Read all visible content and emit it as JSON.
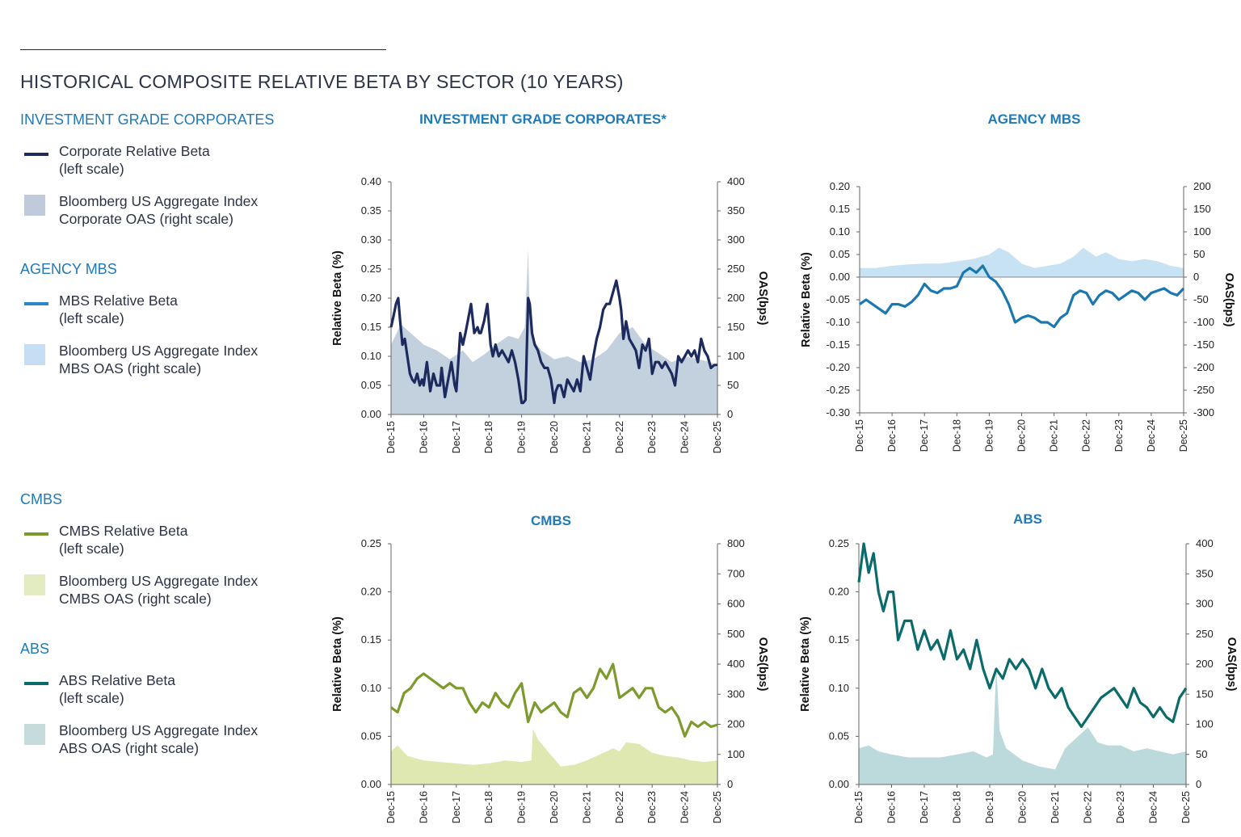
{
  "page": {
    "title": "HISTORICAL COMPOSITE RELATIVE BETA BY SECTOR (10 YEARS)"
  },
  "legend": [
    {
      "heading": "INVESTMENT GRADE CORPORATES",
      "items": [
        {
          "line1": "Corporate Relative Beta",
          "line2": "(left scale)",
          "kind": "line",
          "color": "#1c2a5e"
        },
        {
          "line1": "Bloomberg US Aggregate Index",
          "line2": "Corporate OAS (right scale)",
          "kind": "area",
          "color": "#bfcadb"
        }
      ]
    },
    {
      "heading": "AGENCY MBS",
      "items": [
        {
          "line1": "MBS Relative Beta",
          "line2": "(left scale)",
          "kind": "line",
          "color": "#2a86c8"
        },
        {
          "line1": "Bloomberg US Aggregate Index",
          "line2": "MBS OAS (right scale)",
          "kind": "area",
          "color": "#c6def3"
        }
      ]
    },
    {
      "heading": "CMBS",
      "items": [
        {
          "line1": "CMBS Relative Beta",
          "line2": "(left scale)",
          "kind": "line",
          "color": "#7e9a2d"
        },
        {
          "line1": "Bloomberg US Aggregate Index",
          "line2": "CMBS OAS (right scale)",
          "kind": "area",
          "color": "#e3ebc0"
        }
      ]
    },
    {
      "heading": "ABS",
      "items": [
        {
          "line1": "ABS Relative Beta",
          "line2": "(left scale)",
          "kind": "line",
          "color": "#0b6b6b"
        },
        {
          "line1": "Bloomberg US Aggregate Index",
          "line2": "ABS OAS (right scale)",
          "kind": "area",
          "color": "#c6dcdc"
        }
      ]
    }
  ],
  "chart_data": [
    {
      "type": "line",
      "title": "INVESTMENT GRADE CORPORATES*",
      "ylabel": "Relative Beta (%)",
      "y2label": "OAS(bps)",
      "ylim": [
        0,
        0.4
      ],
      "y2lim": [
        0,
        400
      ],
      "yticks": [
        "0.00",
        "0.05",
        "0.10",
        "0.15",
        "0.20",
        "0.25",
        "0.30",
        "0.35",
        "0.40"
      ],
      "y2ticks": [
        "0",
        "50",
        "100",
        "150",
        "200",
        "250",
        "300",
        "350",
        "400"
      ],
      "categories": [
        "Dec-15",
        "Dec-16",
        "Dec-17",
        "Dec-18",
        "Dec-19",
        "Dec-20",
        "Dec-21",
        "Dec-22",
        "Dec-23",
        "Dec-24",
        "Dec-25"
      ],
      "line_color": "#1c2a5e",
      "area_color": "#c3d0de",
      "beta_x": [
        0,
        0.08,
        0.15,
        0.22,
        0.28,
        0.35,
        0.42,
        0.5,
        0.58,
        0.65,
        0.72,
        0.8,
        0.88,
        0.95,
        1.0,
        1.1,
        1.2,
        1.3,
        1.4,
        1.5,
        1.55,
        1.65,
        1.75,
        1.85,
        1.95,
        2.0,
        2.05,
        2.12,
        2.2,
        2.28,
        2.35,
        2.45,
        2.55,
        2.65,
        2.7,
        2.75,
        2.85,
        2.95,
        3.05,
        3.12,
        3.2,
        3.3,
        3.4,
        3.5,
        3.6,
        3.7,
        3.8,
        3.9,
        4.0,
        4.05,
        4.12,
        4.2,
        4.25,
        4.32,
        4.4,
        4.5,
        4.6,
        4.7,
        4.8,
        4.9,
        5.0,
        5.05,
        5.12,
        5.2,
        5.3,
        5.4,
        5.5,
        5.6,
        5.7,
        5.8,
        5.9,
        6.0,
        6.1,
        6.2,
        6.3,
        6.4,
        6.5,
        6.6,
        6.7,
        6.8,
        6.9,
        7.0,
        7.05,
        7.12,
        7.2,
        7.3,
        7.4,
        7.5,
        7.6,
        7.7,
        7.8,
        7.9,
        8.0,
        8.1,
        8.2,
        8.3,
        8.4,
        8.5,
        8.6,
        8.7,
        8.8,
        8.9,
        9.0,
        9.1,
        9.2,
        9.3,
        9.4,
        9.5,
        9.6,
        9.7,
        9.8,
        9.9,
        10.0
      ],
      "beta_y": [
        0.15,
        0.17,
        0.19,
        0.2,
        0.16,
        0.12,
        0.13,
        0.1,
        0.07,
        0.06,
        0.055,
        0.07,
        0.05,
        0.06,
        0.05,
        0.09,
        0.04,
        0.07,
        0.05,
        0.05,
        0.08,
        0.03,
        0.06,
        0.09,
        0.05,
        0.04,
        0.08,
        0.14,
        0.12,
        0.14,
        0.16,
        0.19,
        0.14,
        0.15,
        0.14,
        0.14,
        0.16,
        0.19,
        0.12,
        0.1,
        0.12,
        0.1,
        0.11,
        0.1,
        0.09,
        0.11,
        0.09,
        0.06,
        0.02,
        0.02,
        0.025,
        0.2,
        0.19,
        0.14,
        0.12,
        0.11,
        0.09,
        0.08,
        0.08,
        0.06,
        0.02,
        0.04,
        0.05,
        0.05,
        0.03,
        0.06,
        0.05,
        0.04,
        0.06,
        0.04,
        0.1,
        0.08,
        0.06,
        0.1,
        0.13,
        0.15,
        0.18,
        0.19,
        0.19,
        0.21,
        0.23,
        0.2,
        0.18,
        0.13,
        0.16,
        0.13,
        0.12,
        0.11,
        0.08,
        0.12,
        0.11,
        0.13,
        0.07,
        0.09,
        0.09,
        0.08,
        0.09,
        0.08,
        0.07,
        0.05,
        0.1,
        0.09,
        0.1,
        0.11,
        0.1,
        0.11,
        0.09,
        0.13,
        0.11,
        0.1,
        0.08,
        0.085,
        0.085
      ],
      "oas_x": [
        0,
        0.3,
        0.6,
        1.0,
        1.4,
        1.8,
        2.2,
        2.5,
        2.9,
        3.2,
        3.6,
        3.9,
        4.1,
        4.2,
        4.25,
        4.35,
        4.6,
        5.0,
        5.4,
        5.8,
        6.2,
        6.6,
        7.0,
        7.4,
        7.8,
        8.2,
        8.6,
        9.0,
        9.4,
        9.8,
        10.0
      ],
      "oas_y": [
        120,
        155,
        140,
        120,
        110,
        95,
        110,
        90,
        105,
        120,
        135,
        130,
        150,
        285,
        160,
        130,
        110,
        95,
        100,
        90,
        95,
        110,
        140,
        150,
        120,
        105,
        90,
        100,
        95,
        90,
        80
      ]
    },
    {
      "type": "line",
      "title": "AGENCY MBS",
      "ylabel": "Relative Beta (%)",
      "y2label": "OAS(bps)",
      "ylim": [
        -0.3,
        0.2
      ],
      "y2lim": [
        -300,
        200
      ],
      "yticks": [
        "-0.30",
        "-0.25",
        "-0.20",
        "-0.15",
        "-0.10",
        "-0.05",
        "0.00",
        "0.05",
        "0.10",
        "0.15",
        "0.20"
      ],
      "y2ticks": [
        "-300",
        "-250",
        "-200",
        "-150",
        "-100",
        "-50",
        "0",
        "50",
        "100",
        "150",
        "200"
      ],
      "categories": [
        "Dec-15",
        "Dec-16",
        "Dec-17",
        "Dec-18",
        "Dec-19",
        "Dec-20",
        "Dec-21",
        "Dec-22",
        "Dec-23",
        "Dec-24",
        "Dec-25"
      ],
      "line_color": "#1a78b0",
      "area_color": "#c7e2f3",
      "beta_x": [
        0,
        0.2,
        0.4,
        0.6,
        0.8,
        1.0,
        1.2,
        1.4,
        1.6,
        1.8,
        2.0,
        2.2,
        2.4,
        2.6,
        2.8,
        3.0,
        3.2,
        3.4,
        3.6,
        3.8,
        4.0,
        4.2,
        4.4,
        4.6,
        4.8,
        5.0,
        5.2,
        5.4,
        5.6,
        5.8,
        6.0,
        6.2,
        6.4,
        6.6,
        6.8,
        7.0,
        7.2,
        7.4,
        7.6,
        7.8,
        8.0,
        8.2,
        8.4,
        8.6,
        8.8,
        9.0,
        9.2,
        9.4,
        9.6,
        9.8,
        10.0
      ],
      "beta_y": [
        -0.06,
        -0.05,
        -0.06,
        -0.07,
        -0.08,
        -0.06,
        -0.06,
        -0.065,
        -0.055,
        -0.04,
        -0.015,
        -0.03,
        -0.035,
        -0.025,
        -0.025,
        -0.02,
        0.01,
        0.02,
        0.01,
        0.025,
        0.0,
        -0.01,
        -0.03,
        -0.06,
        -0.1,
        -0.09,
        -0.085,
        -0.09,
        -0.1,
        -0.1,
        -0.11,
        -0.09,
        -0.08,
        -0.04,
        -0.03,
        -0.035,
        -0.06,
        -0.04,
        -0.03,
        -0.035,
        -0.05,
        -0.04,
        -0.03,
        -0.035,
        -0.05,
        -0.035,
        -0.03,
        -0.025,
        -0.035,
        -0.04,
        -0.025
      ],
      "oas_x": [
        0,
        0.5,
        1.0,
        1.5,
        2.0,
        2.5,
        3.0,
        3.5,
        4.0,
        4.3,
        4.6,
        5.0,
        5.4,
        5.8,
        6.2,
        6.6,
        6.9,
        7.3,
        7.6,
        8.0,
        8.4,
        8.8,
        9.2,
        9.6,
        10.0
      ],
      "oas_y": [
        20,
        20,
        25,
        28,
        30,
        30,
        35,
        40,
        50,
        65,
        55,
        30,
        20,
        25,
        30,
        45,
        65,
        45,
        55,
        40,
        35,
        40,
        35,
        25,
        20
      ]
    },
    {
      "type": "line",
      "title": "CMBS",
      "ylabel": "Relative Beta (%)",
      "y2label": "OAS(bps)",
      "ylim": [
        0,
        0.25
      ],
      "y2lim": [
        0,
        800
      ],
      "yticks": [
        "0.00",
        "0.05",
        "0.10",
        "0.15",
        "0.20",
        "0.25"
      ],
      "y2ticks": [
        "0",
        "100",
        "200",
        "300",
        "400",
        "500",
        "600",
        "700",
        "800"
      ],
      "categories": [
        "Dec-15",
        "Dec-16",
        "Dec-17",
        "Dec-18",
        "Dec-19",
        "Dec-20",
        "Dec-21",
        "Dec-22",
        "Dec-23",
        "Dec-24",
        "Dec-25"
      ],
      "line_color": "#7d9a2c",
      "area_color": "#dfe8b0",
      "beta_x": [
        0,
        0.2,
        0.4,
        0.6,
        0.8,
        1.0,
        1.2,
        1.4,
        1.6,
        1.8,
        2.0,
        2.2,
        2.4,
        2.6,
        2.8,
        3.0,
        3.2,
        3.4,
        3.6,
        3.8,
        4.0,
        4.2,
        4.4,
        4.6,
        4.8,
        5.0,
        5.2,
        5.4,
        5.6,
        5.8,
        6.0,
        6.2,
        6.4,
        6.6,
        6.8,
        7.0,
        7.2,
        7.4,
        7.6,
        7.8,
        8.0,
        8.2,
        8.4,
        8.6,
        8.8,
        9.0,
        9.2,
        9.4,
        9.6,
        9.8,
        10.0
      ],
      "beta_y": [
        0.08,
        0.075,
        0.095,
        0.1,
        0.11,
        0.115,
        0.11,
        0.105,
        0.1,
        0.105,
        0.1,
        0.1,
        0.085,
        0.075,
        0.085,
        0.08,
        0.095,
        0.085,
        0.08,
        0.095,
        0.105,
        0.065,
        0.085,
        0.075,
        0.08,
        0.085,
        0.075,
        0.07,
        0.095,
        0.1,
        0.09,
        0.1,
        0.12,
        0.11,
        0.125,
        0.09,
        0.095,
        0.1,
        0.09,
        0.1,
        0.1,
        0.08,
        0.075,
        0.08,
        0.07,
        0.05,
        0.065,
        0.06,
        0.065,
        0.06,
        0.062
      ],
      "oas_x": [
        0,
        0.2,
        0.5,
        1.0,
        1.5,
        2.0,
        2.5,
        3.0,
        3.5,
        4.0,
        4.3,
        4.35,
        4.5,
        4.8,
        5.2,
        5.6,
        6.0,
        6.4,
        6.8,
        7.0,
        7.2,
        7.6,
        8.0,
        8.4,
        8.8,
        9.2,
        9.6,
        10.0
      ],
      "oas_y": [
        110,
        130,
        95,
        80,
        75,
        70,
        65,
        70,
        80,
        75,
        80,
        185,
        150,
        110,
        60,
        65,
        80,
        100,
        120,
        110,
        140,
        135,
        105,
        95,
        90,
        80,
        75,
        80
      ]
    },
    {
      "type": "line",
      "title": "ABS",
      "ylabel": "Relative Beta (%)",
      "y2label": "OAS(bps)",
      "ylim": [
        0,
        0.25
      ],
      "y2lim": [
        0,
        400
      ],
      "yticks": [
        "0.00",
        "0.05",
        "0.10",
        "0.15",
        "0.20",
        "0.25"
      ],
      "y2ticks": [
        "0",
        "50",
        "100",
        "150",
        "200",
        "250",
        "300",
        "350",
        "400"
      ],
      "categories": [
        "Dec-15",
        "Dec-16",
        "Dec-17",
        "Dec-18",
        "Dec-19",
        "Dec-20",
        "Dec-21",
        "Dec-22",
        "Dec-23",
        "Dec-24",
        "Dec-25"
      ],
      "line_color": "#0b6b6b",
      "area_color": "#bcd9dc",
      "beta_x": [
        0,
        0.15,
        0.3,
        0.45,
        0.6,
        0.75,
        0.9,
        1.05,
        1.2,
        1.4,
        1.6,
        1.8,
        2.0,
        2.2,
        2.4,
        2.6,
        2.8,
        3.0,
        3.2,
        3.4,
        3.6,
        3.8,
        4.0,
        4.2,
        4.4,
        4.6,
        4.8,
        5.0,
        5.2,
        5.4,
        5.6,
        5.8,
        6.0,
        6.2,
        6.4,
        6.6,
        6.8,
        7.0,
        7.2,
        7.4,
        7.6,
        7.8,
        8.0,
        8.2,
        8.4,
        8.6,
        8.8,
        9.0,
        9.2,
        9.4,
        9.6,
        9.8,
        10.0
      ],
      "beta_y": [
        0.21,
        0.25,
        0.22,
        0.24,
        0.2,
        0.18,
        0.2,
        0.2,
        0.15,
        0.17,
        0.17,
        0.14,
        0.16,
        0.14,
        0.15,
        0.13,
        0.16,
        0.13,
        0.14,
        0.12,
        0.15,
        0.12,
        0.1,
        0.12,
        0.11,
        0.13,
        0.12,
        0.13,
        0.12,
        0.1,
        0.12,
        0.1,
        0.09,
        0.1,
        0.08,
        0.07,
        0.06,
        0.07,
        0.08,
        0.09,
        0.095,
        0.1,
        0.09,
        0.08,
        0.1,
        0.085,
        0.08,
        0.07,
        0.08,
        0.07,
        0.065,
        0.09,
        0.1
      ],
      "oas_x": [
        0,
        0.3,
        0.6,
        1.0,
        1.5,
        2.0,
        2.5,
        3.0,
        3.5,
        3.9,
        4.1,
        4.2,
        4.3,
        4.5,
        5.0,
        5.5,
        6.0,
        6.3,
        6.7,
        7.0,
        7.3,
        7.6,
        8.0,
        8.4,
        8.8,
        9.2,
        9.6,
        10.0
      ],
      "oas_y": [
        60,
        65,
        55,
        50,
        45,
        45,
        45,
        50,
        55,
        45,
        50,
        200,
        90,
        60,
        40,
        30,
        25,
        60,
        80,
        95,
        70,
        65,
        65,
        55,
        60,
        55,
        50,
        55
      ]
    }
  ]
}
